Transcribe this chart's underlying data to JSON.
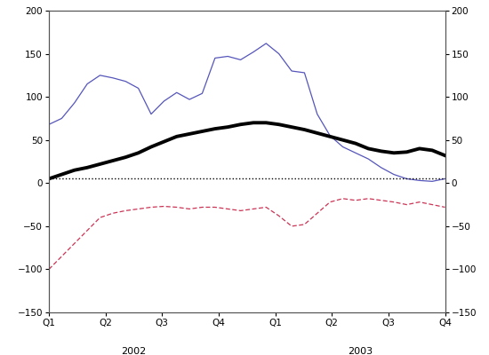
{
  "x_labels": [
    "Q1",
    "Q2",
    "Q3",
    "Q4",
    "Q1",
    "Q2",
    "Q3",
    "Q4"
  ],
  "x_year_labels": [
    "2002",
    "2003"
  ],
  "ylim": [
    -150,
    200
  ],
  "yticks": [
    -150,
    -100,
    -50,
    0,
    50,
    100,
    150,
    200
  ],
  "n_points": 32,
  "blue_line": [
    68,
    75,
    93,
    115,
    125,
    122,
    118,
    110,
    80,
    95,
    105,
    97,
    104,
    145,
    147,
    143,
    152,
    162,
    150,
    130,
    128,
    80,
    55,
    42,
    35,
    28,
    18,
    10,
    5,
    3,
    2,
    5
  ],
  "black_line": [
    5,
    10,
    15,
    18,
    22,
    26,
    30,
    35,
    42,
    48,
    54,
    57,
    60,
    63,
    65,
    68,
    70,
    70,
    68,
    65,
    62,
    58,
    54,
    50,
    46,
    40,
    37,
    35,
    36,
    40,
    38,
    32
  ],
  "red_dashed": [
    -100,
    -85,
    -70,
    -55,
    -40,
    -35,
    -32,
    -30,
    -28,
    -27,
    -28,
    -30,
    -28,
    -28,
    -30,
    -32,
    -30,
    -28,
    -38,
    -50,
    -48,
    -35,
    -22,
    -18,
    -20,
    -18,
    -20,
    -22,
    -25,
    -22,
    -25,
    -28
  ],
  "blue_color": "#5555bb",
  "black_color": "#000000",
  "red_color": "#cc3355",
  "background": "#ffffff",
  "zero_line_style": "dotted",
  "zero_line_color": "#000000",
  "tick_fontsize": 7.5,
  "year_fontsize": 8
}
